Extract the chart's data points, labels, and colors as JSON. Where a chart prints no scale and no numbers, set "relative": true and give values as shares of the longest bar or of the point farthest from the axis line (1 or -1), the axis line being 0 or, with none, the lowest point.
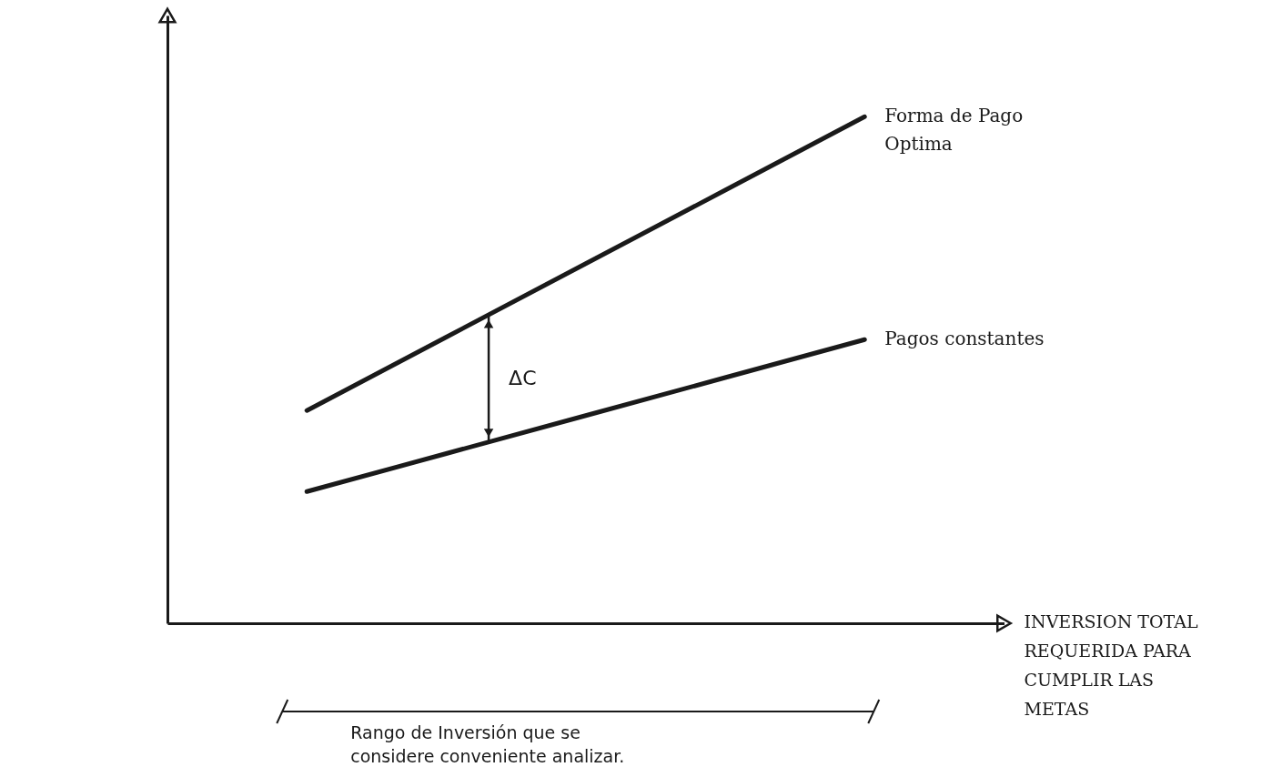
{
  "chart_data": {
    "type": "line",
    "relative": true,
    "xlabel": "INVERSION TOTAL REQUERIDA PARA CUMPLIR LAS METAS",
    "categories": [
      null,
      null,
      null,
      null,
      null,
      null,
      null
    ],
    "series": [
      {
        "name": "Forma de Pago Optima",
        "color": "#1a1a1a",
        "values": [
          null,
          0.42,
          0.565,
          0.71,
          0.855,
          1,
          null
        ]
      },
      {
        "name": "Pagos constantes",
        "color": "#1a1a1a",
        "values": [
          null,
          0.26,
          0.335,
          0.41,
          0.485,
          0.56,
          null
        ]
      }
    ],
    "annotations": [
      "ΔC",
      "Rango de Inversión que se considere conveniente analizar."
    ]
  }
}
